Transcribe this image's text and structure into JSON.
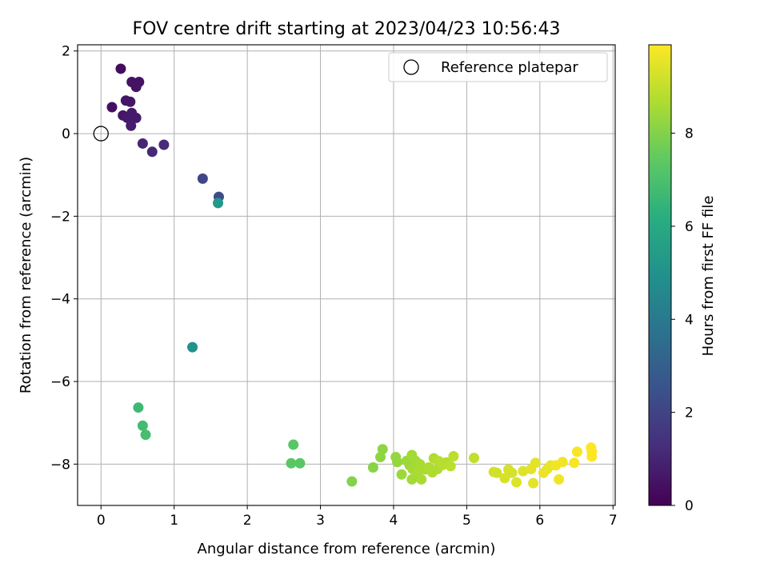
{
  "chart_data": {
    "type": "scatter",
    "title": "FOV centre drift starting at 2023/04/23 10:56:43",
    "xlabel": "Angular distance from reference (arcmin)",
    "ylabel": "Rotation from reference (arcmin)",
    "xlim": [
      -0.32,
      7.03
    ],
    "ylim": [
      -9.0,
      2.15
    ],
    "xticks": [
      0,
      1,
      2,
      3,
      4,
      5,
      6,
      7
    ],
    "yticks": [
      2,
      0,
      -2,
      -4,
      -6,
      -8
    ],
    "grid": true,
    "legend": {
      "position": "top-right",
      "entries": [
        "Reference platepar"
      ]
    },
    "reference_point": {
      "x": 0,
      "y": 0
    },
    "colorbar": {
      "label": "Hours from first FF file",
      "min": 0,
      "max": 9.9,
      "ticks": [
        0,
        2,
        4,
        6,
        8
      ],
      "colormap": "viridis"
    },
    "points": [
      {
        "x": 0.27,
        "y": 1.57,
        "c": 0.3
      },
      {
        "x": 0.42,
        "y": 1.25,
        "c": 0.5
      },
      {
        "x": 0.52,
        "y": 1.25,
        "c": 0.5
      },
      {
        "x": 0.48,
        "y": 1.13,
        "c": 0.5
      },
      {
        "x": 0.15,
        "y": 0.64,
        "c": 0.4
      },
      {
        "x": 0.34,
        "y": 0.8,
        "c": 0.6
      },
      {
        "x": 0.4,
        "y": 0.77,
        "c": 0.6
      },
      {
        "x": 0.3,
        "y": 0.44,
        "c": 0.6
      },
      {
        "x": 0.42,
        "y": 0.5,
        "c": 0.7
      },
      {
        "x": 0.36,
        "y": 0.38,
        "c": 0.7
      },
      {
        "x": 0.48,
        "y": 0.38,
        "c": 0.7
      },
      {
        "x": 0.41,
        "y": 0.19,
        "c": 0.8
      },
      {
        "x": 0.57,
        "y": -0.24,
        "c": 1.0
      },
      {
        "x": 0.7,
        "y": -0.44,
        "c": 1.1
      },
      {
        "x": 0.86,
        "y": -0.27,
        "c": 1.2
      },
      {
        "x": 1.39,
        "y": -1.09,
        "c": 2.1
      },
      {
        "x": 1.61,
        "y": -1.53,
        "c": 2.3
      },
      {
        "x": 1.6,
        "y": -1.68,
        "c": 5.3
      },
      {
        "x": 1.25,
        "y": -5.17,
        "c": 5.0
      },
      {
        "x": 0.51,
        "y": -6.63,
        "c": 6.7
      },
      {
        "x": 0.57,
        "y": -7.07,
        "c": 6.8
      },
      {
        "x": 0.61,
        "y": -7.29,
        "c": 6.9
      },
      {
        "x": 2.63,
        "y": -7.53,
        "c": 7.3
      },
      {
        "x": 2.6,
        "y": -7.98,
        "c": 7.3
      },
      {
        "x": 2.72,
        "y": -7.98,
        "c": 7.3
      },
      {
        "x": 3.43,
        "y": -8.42,
        "c": 8.0
      },
      {
        "x": 3.72,
        "y": -8.08,
        "c": 8.1
      },
      {
        "x": 3.82,
        "y": -7.83,
        "c": 8.2
      },
      {
        "x": 3.85,
        "y": -7.64,
        "c": 8.2
      },
      {
        "x": 4.03,
        "y": -7.83,
        "c": 8.3
      },
      {
        "x": 4.05,
        "y": -7.95,
        "c": 8.3
      },
      {
        "x": 4.11,
        "y": -8.25,
        "c": 8.4
      },
      {
        "x": 4.18,
        "y": -7.92,
        "c": 8.4
      },
      {
        "x": 4.22,
        "y": -8.03,
        "c": 8.4
      },
      {
        "x": 4.25,
        "y": -7.78,
        "c": 8.5
      },
      {
        "x": 4.26,
        "y": -8.12,
        "c": 8.5
      },
      {
        "x": 4.25,
        "y": -8.37,
        "c": 8.5
      },
      {
        "x": 4.3,
        "y": -7.92,
        "c": 8.5
      },
      {
        "x": 4.33,
        "y": -8.2,
        "c": 8.6
      },
      {
        "x": 4.36,
        "y": -8.0,
        "c": 8.6
      },
      {
        "x": 4.38,
        "y": -8.37,
        "c": 8.6
      },
      {
        "x": 4.43,
        "y": -8.13,
        "c": 8.6
      },
      {
        "x": 4.48,
        "y": -8.08,
        "c": 8.7
      },
      {
        "x": 4.53,
        "y": -8.2,
        "c": 8.7
      },
      {
        "x": 4.55,
        "y": -7.86,
        "c": 8.7
      },
      {
        "x": 4.6,
        "y": -8.12,
        "c": 8.7
      },
      {
        "x": 4.62,
        "y": -7.93,
        "c": 8.8
      },
      {
        "x": 4.67,
        "y": -8.02,
        "c": 8.8
      },
      {
        "x": 4.72,
        "y": -7.96,
        "c": 8.8
      },
      {
        "x": 4.78,
        "y": -8.05,
        "c": 8.9
      },
      {
        "x": 4.82,
        "y": -7.81,
        "c": 8.9
      },
      {
        "x": 5.1,
        "y": -7.85,
        "c": 9.0
      },
      {
        "x": 5.37,
        "y": -8.19,
        "c": 9.2
      },
      {
        "x": 5.41,
        "y": -8.21,
        "c": 9.2
      },
      {
        "x": 5.52,
        "y": -8.34,
        "c": 9.3
      },
      {
        "x": 5.57,
        "y": -8.13,
        "c": 9.3
      },
      {
        "x": 5.62,
        "y": -8.21,
        "c": 9.3
      },
      {
        "x": 5.68,
        "y": -8.44,
        "c": 9.4
      },
      {
        "x": 5.77,
        "y": -8.17,
        "c": 9.4
      },
      {
        "x": 5.88,
        "y": -8.12,
        "c": 9.5
      },
      {
        "x": 5.91,
        "y": -8.46,
        "c": 9.5
      },
      {
        "x": 5.94,
        "y": -7.97,
        "c": 9.5
      },
      {
        "x": 6.05,
        "y": -8.21,
        "c": 9.6
      },
      {
        "x": 6.1,
        "y": -8.12,
        "c": 9.6
      },
      {
        "x": 6.15,
        "y": -8.03,
        "c": 9.6
      },
      {
        "x": 6.22,
        "y": -8.03,
        "c": 9.7
      },
      {
        "x": 6.26,
        "y": -8.37,
        "c": 9.7
      },
      {
        "x": 6.31,
        "y": -7.95,
        "c": 9.7
      },
      {
        "x": 6.47,
        "y": -7.97,
        "c": 9.8
      },
      {
        "x": 6.51,
        "y": -7.7,
        "c": 9.8
      },
      {
        "x": 6.7,
        "y": -7.6,
        "c": 9.9
      },
      {
        "x": 6.71,
        "y": -7.7,
        "c": 9.9
      },
      {
        "x": 6.71,
        "y": -7.82,
        "c": 9.9
      }
    ]
  }
}
